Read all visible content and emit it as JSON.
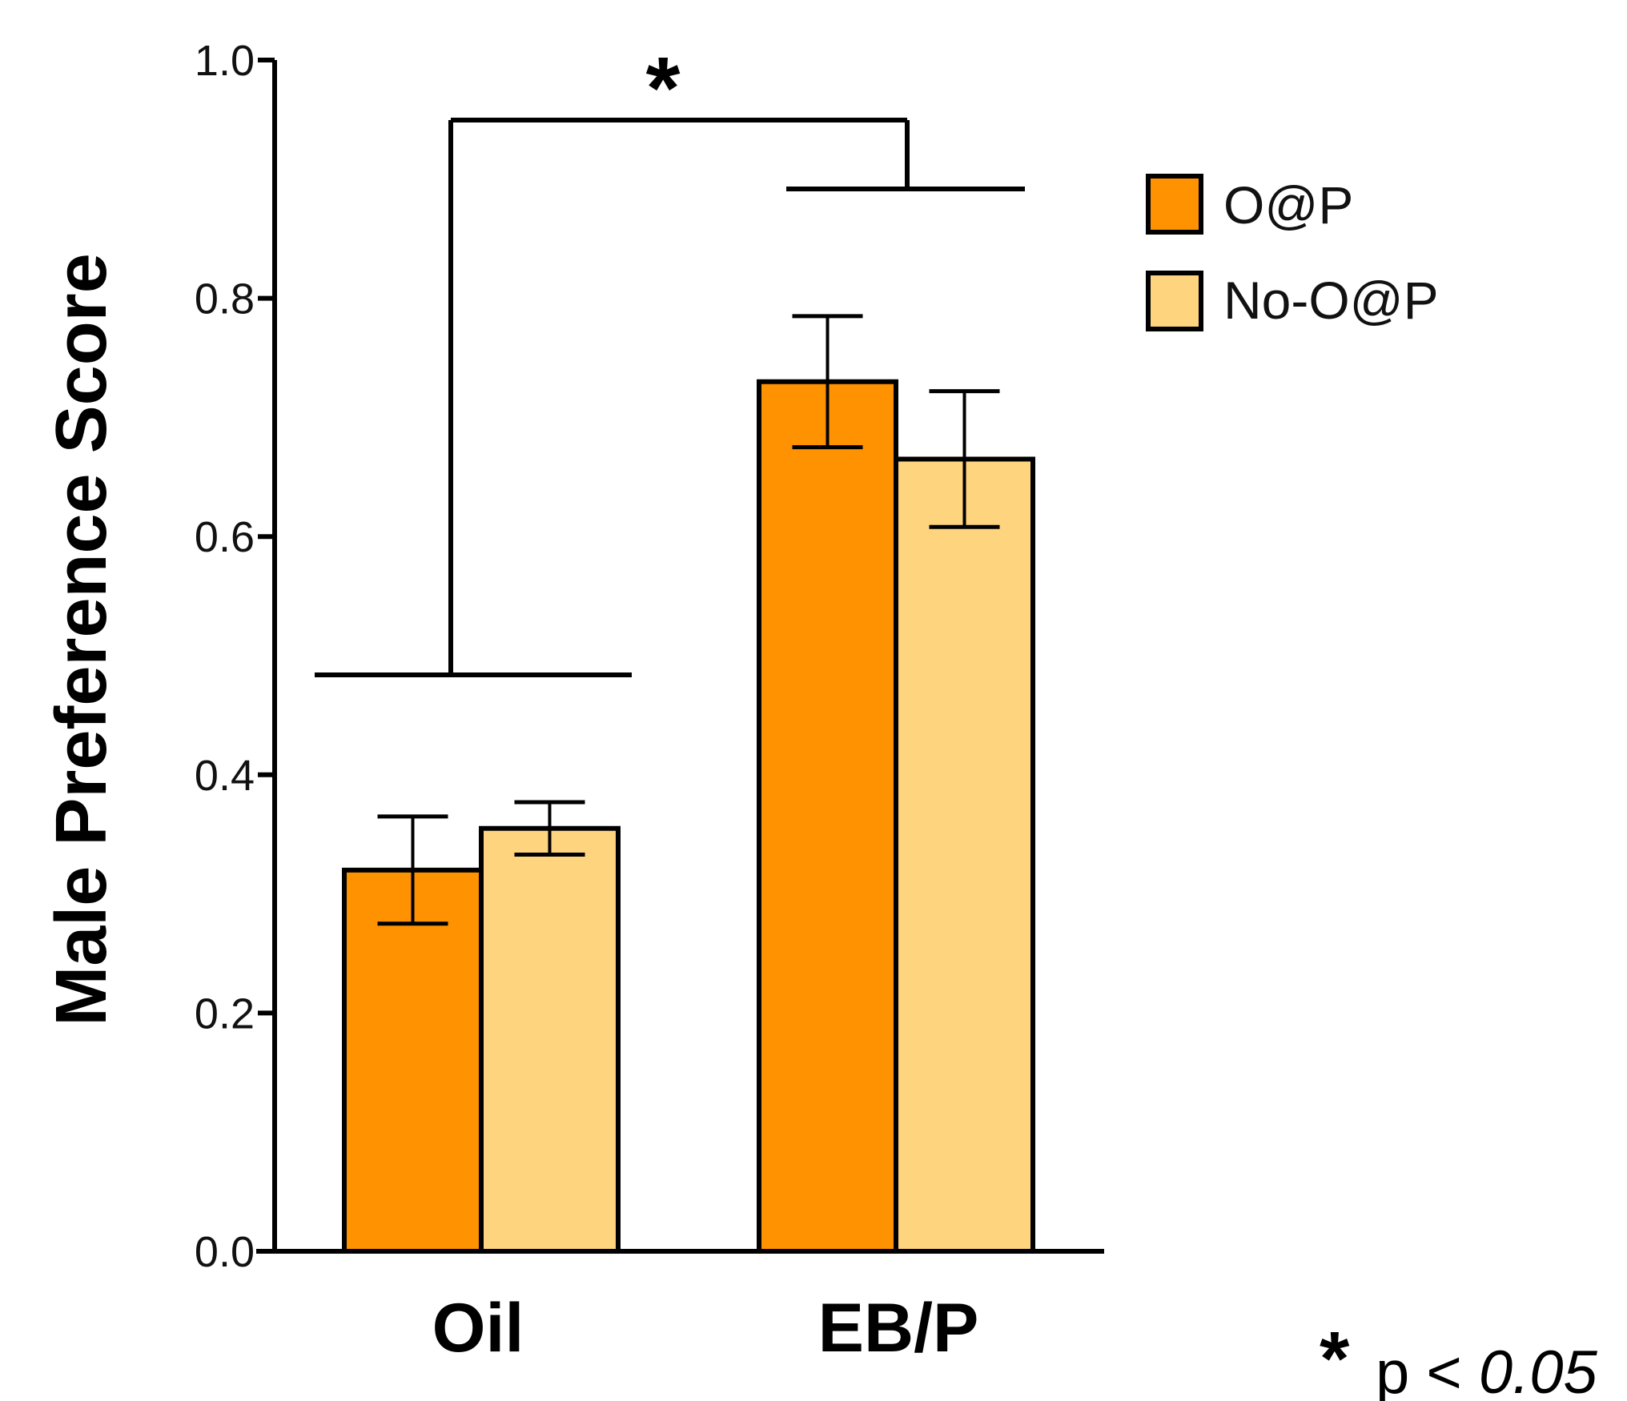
{
  "chart_data": {
    "type": "bar",
    "ylabel": "Male Preference Score",
    "xlabel": "",
    "ylim": [
      0,
      1.0
    ],
    "yticks": [
      "0.0",
      "0.2",
      "0.4",
      "0.6",
      "0.8",
      "1.0"
    ],
    "categories": [
      "Oil",
      "EB/P"
    ],
    "series": [
      {
        "name": "O@P",
        "color": "#ff9200",
        "values": [
          0.32,
          0.73
        ],
        "error": [
          0.045,
          0.055
        ]
      },
      {
        "name": "No-O@P",
        "color": "#ffd47e",
        "values": [
          0.355,
          0.665
        ],
        "error": [
          0.022,
          0.057
        ]
      }
    ],
    "legend": {
      "placement": "right"
    },
    "significance": {
      "marker": "*",
      "comparison": [
        "Oil",
        "EB/P"
      ]
    },
    "note": {
      "marker": "*",
      "text": "p < ",
      "value": "0.05"
    }
  }
}
